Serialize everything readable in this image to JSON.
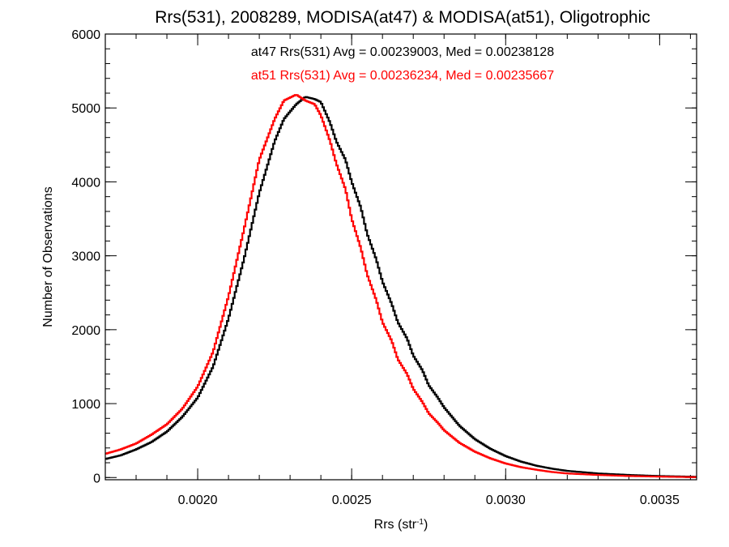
{
  "chart_data": {
    "type": "line",
    "title": "Rrs(531), 2008289, MODISA(at47) & MODISA(at51), Oligotrophic",
    "xlabel": "Rrs (str",
    "xlabel_sup": "-1",
    "xlabel_close": ")",
    "ylabel": "Number of Observations",
    "xlim": [
      0.0017,
      0.00362
    ],
    "ylim": [
      -30,
      6000
    ],
    "x_ticks": [
      {
        "value": 0.002,
        "label": "0.0020"
      },
      {
        "value": 0.0025,
        "label": "0.0025"
      },
      {
        "value": 0.003,
        "label": "0.0030"
      },
      {
        "value": 0.0035,
        "label": "0.0035"
      }
    ],
    "y_ticks": [
      {
        "value": 0,
        "label": "0"
      },
      {
        "value": 1000,
        "label": "1000"
      },
      {
        "value": 2000,
        "label": "2000"
      },
      {
        "value": 3000,
        "label": "3000"
      },
      {
        "value": 4000,
        "label": "4000"
      },
      {
        "value": 5000,
        "label": "5000"
      },
      {
        "value": 6000,
        "label": "6000"
      }
    ],
    "x_minor_step": 0.0001,
    "y_minor_step": 200,
    "annotations": [
      {
        "text": "at47 Rrs(531) Avg = 0.00239003, Med = 0.00238128",
        "color": "#000000"
      },
      {
        "text": "at51 Rrs(531) Avg = 0.00236234, Med = 0.00235667",
        "color": "#ff0000"
      }
    ],
    "series": [
      {
        "color": "#000000",
        "x": [
          0.0017,
          0.00175,
          0.0018,
          0.00185,
          0.0019,
          0.00195,
          0.002,
          0.00205,
          0.0021,
          0.00215,
          0.0022,
          0.00225,
          0.00228,
          0.00232,
          0.00235,
          0.00238,
          0.0024,
          0.00243,
          0.00245,
          0.00248,
          0.0025,
          0.00253,
          0.00255,
          0.00258,
          0.0026,
          0.00263,
          0.00265,
          0.00268,
          0.0027,
          0.00273,
          0.00275,
          0.00278,
          0.0028,
          0.00285,
          0.0029,
          0.00295,
          0.003,
          0.00305,
          0.0031,
          0.00315,
          0.0032,
          0.0033,
          0.0034,
          0.0035,
          0.00362
        ],
        "y": [
          250,
          300,
          380,
          480,
          620,
          820,
          1080,
          1500,
          2150,
          2950,
          3850,
          4550,
          4850,
          5050,
          5150,
          5120,
          5080,
          4800,
          4550,
          4300,
          4000,
          3650,
          3300,
          2950,
          2650,
          2350,
          2100,
          1880,
          1650,
          1450,
          1250,
          1080,
          950,
          700,
          520,
          390,
          290,
          215,
          160,
          120,
          90,
          55,
          35,
          20,
          10
        ]
      },
      {
        "color": "#ff0000",
        "x": [
          0.0017,
          0.00175,
          0.0018,
          0.00185,
          0.0019,
          0.00195,
          0.002,
          0.00205,
          0.0021,
          0.00215,
          0.0022,
          0.00225,
          0.00228,
          0.00232,
          0.00235,
          0.00238,
          0.0024,
          0.00243,
          0.00245,
          0.00248,
          0.0025,
          0.00253,
          0.00255,
          0.00258,
          0.0026,
          0.00263,
          0.00265,
          0.00268,
          0.0027,
          0.00273,
          0.00275,
          0.00278,
          0.0028,
          0.00285,
          0.0029,
          0.00295,
          0.003,
          0.00305,
          0.0031,
          0.00315,
          0.0032,
          0.0033,
          0.0034,
          0.0035,
          0.00362
        ],
        "y": [
          320,
          380,
          460,
          580,
          720,
          930,
          1230,
          1700,
          2450,
          3350,
          4300,
          4850,
          5100,
          5180,
          5100,
          5050,
          4900,
          4550,
          4250,
          3900,
          3500,
          3100,
          2750,
          2400,
          2100,
          1850,
          1600,
          1400,
          1200,
          1020,
          870,
          740,
          640,
          470,
          350,
          260,
          190,
          140,
          105,
          75,
          55,
          35,
          20,
          12,
          5
        ]
      }
    ]
  }
}
